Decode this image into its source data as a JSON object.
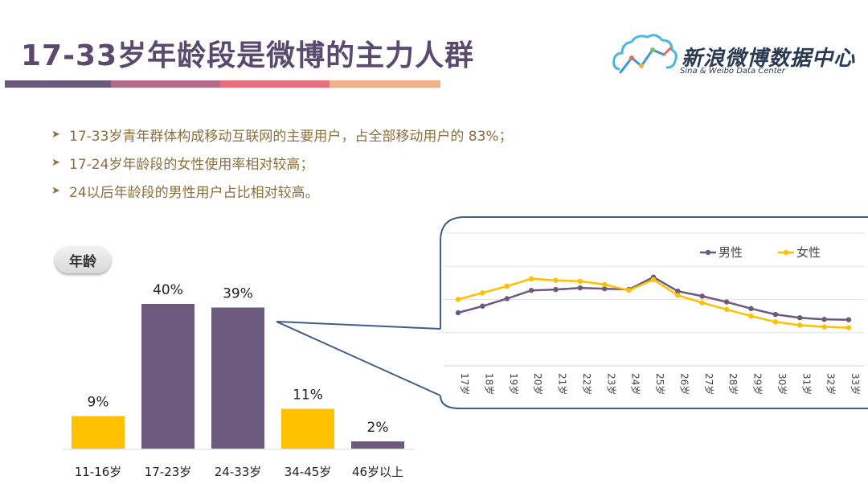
{
  "header": {
    "title": "17-33岁年龄段是微博的主力人群",
    "stripe_colors": [
      "#6b5a7e",
      "#b56a86",
      "#e8707e",
      "#f2b08a"
    ]
  },
  "logo": {
    "name": "新浪微博数据中心",
    "subtitle": "Sina & Weibo Data Center",
    "icon": "cloud-chart-icon"
  },
  "bullets": [
    "17-33岁青年群体构成移动互联网的主要用户，占全部移动用户的 83%；",
    "17-24岁年龄段的女性使用率相对较高；",
    "24以后年龄段的男性用户占比相对较高。"
  ],
  "age_pill": "年龄",
  "colors": {
    "purple": "#6b5a7e",
    "yellow": "#ffc000",
    "border": "#3f5f86",
    "text": "#8a7040"
  },
  "chart_data": [
    {
      "type": "bar",
      "categories": [
        "11-16岁",
        "17-23岁",
        "24-33岁",
        "34-45岁",
        "46岁以上"
      ],
      "values": [
        9,
        40,
        39,
        11,
        2
      ],
      "value_labels": [
        "9%",
        "40%",
        "39%",
        "11%",
        "2%"
      ],
      "bar_colors": [
        "#ffc000",
        "#6b5a7e",
        "#6b5a7e",
        "#ffc000",
        "#6b5a7e"
      ],
      "ylim": [
        0,
        40
      ]
    },
    {
      "type": "line",
      "x": [
        "17岁",
        "18岁",
        "19岁",
        "20岁",
        "21岁",
        "22岁",
        "23岁",
        "24岁",
        "25岁",
        "26岁",
        "27岁",
        "28岁",
        "29岁",
        "30岁",
        "31岁",
        "32岁",
        "33岁"
      ],
      "series": [
        {
          "name": "男性",
          "color": "#6b5a7e",
          "values": [
            3.2,
            3.6,
            4.05,
            4.55,
            4.6,
            4.7,
            4.65,
            4.6,
            5.35,
            4.5,
            4.2,
            3.85,
            3.45,
            3.1,
            2.9,
            2.8,
            2.78
          ]
        },
        {
          "name": "女性",
          "color": "#ffc000",
          "values": [
            4.0,
            4.4,
            4.8,
            5.25,
            5.15,
            5.1,
            4.9,
            4.55,
            5.2,
            4.25,
            3.8,
            3.4,
            3.0,
            2.65,
            2.45,
            2.35,
            2.3
          ]
        }
      ],
      "ylim": [
        0,
        8
      ],
      "legend": "top-right",
      "grid": true
    }
  ]
}
